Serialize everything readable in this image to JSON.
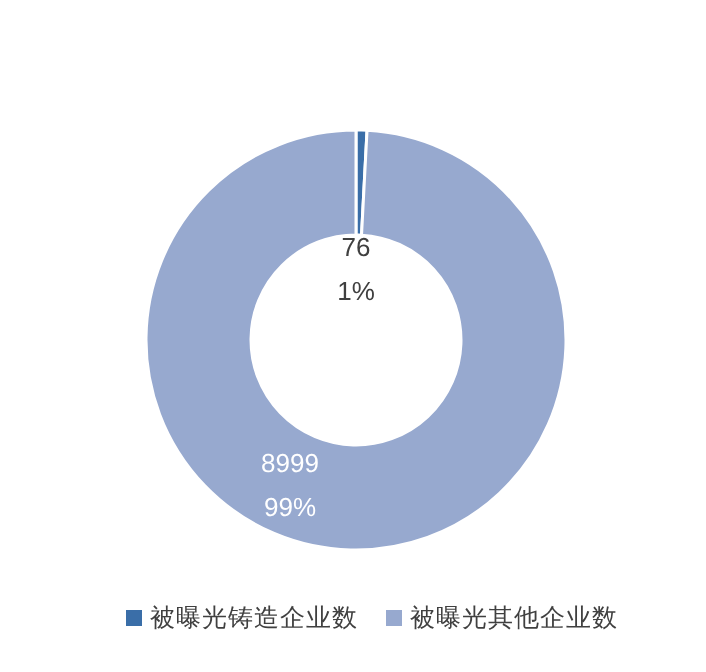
{
  "chart_data": {
    "type": "donut",
    "categories": [
      "被曝光铸造企业数",
      "被曝光其他企业数"
    ],
    "values": [
      76,
      8999
    ],
    "colors": [
      "#3a6ea8",
      "#97a9cf"
    ],
    "value_labels": [
      "76\n1%",
      "8999\n99%"
    ],
    "legend": "bottom"
  }
}
